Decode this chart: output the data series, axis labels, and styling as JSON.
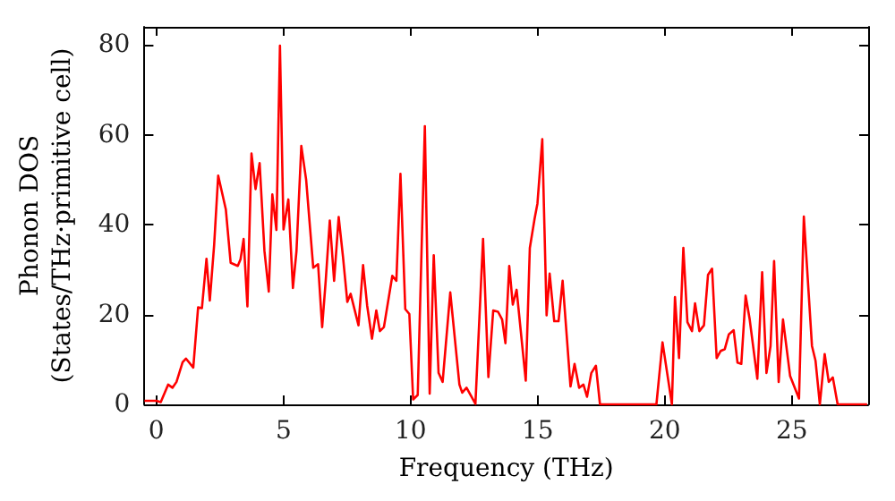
{
  "chart_data": {
    "type": "line",
    "xlabel": "Frequency (THz)",
    "ylabel": "Phonon DOS\n(States/THz·primitive cell)",
    "xlim": [
      -0.47,
      28
    ],
    "xticks": [
      0,
      5,
      10,
      15,
      20,
      25
    ],
    "ylim": [
      0,
      84
    ],
    "yticks": [
      0,
      20,
      40,
      60,
      80
    ],
    "grid": false,
    "marker": "none",
    "line_style": "solid",
    "series": [
      {
        "color": "#ff0000",
        "x": [
          -0.47,
          0,
          0.17,
          0.46,
          0.63,
          0.79,
          1.03,
          1.16,
          1.45,
          1.64,
          1.79,
          1.97,
          2.1,
          2.27,
          2.43,
          2.73,
          2.92,
          3.2,
          3.31,
          3.43,
          3.58,
          3.74,
          3.9,
          4.06,
          4.25,
          4.42,
          4.56,
          4.72,
          4.86,
          5.0,
          5.19,
          5.37,
          5.51,
          5.7,
          5.89,
          6.17,
          6.36,
          6.52,
          6.66,
          6.82,
          6.99,
          7.17,
          7.34,
          7.51,
          7.64,
          7.95,
          8.13,
          8.29,
          8.48,
          8.65,
          8.79,
          8.95,
          9.28,
          9.44,
          9.6,
          9.79,
          9.95,
          10.1,
          10.28,
          10.56,
          10.75,
          10.91,
          11.1,
          11.26,
          11.56,
          11.92,
          12.03,
          12.2,
          12.55,
          12.85,
          13.06,
          13.25,
          13.44,
          13.6,
          13.73,
          13.88,
          14.02,
          14.17,
          14.53,
          14.69,
          14.88,
          14.99,
          15.18,
          15.35,
          15.47,
          15.65,
          15.82,
          15.98,
          16.29,
          16.45,
          16.63,
          16.8,
          16.94,
          17.11,
          17.29,
          17.45,
          19.67,
          19.91,
          20.28,
          20.4,
          20.56,
          20.73,
          20.89,
          21.07,
          21.19,
          21.36,
          21.54,
          21.7,
          21.86,
          22.04,
          22.2,
          22.36,
          22.52,
          22.71,
          22.86,
          23.01,
          23.18,
          23.34,
          23.64,
          23.83,
          24.0,
          24.16,
          24.3,
          24.48,
          24.65,
          24.93,
          25.28,
          25.47,
          25.79,
          25.93,
          26.1,
          26.29,
          26.45,
          26.61,
          26.8,
          27.96
        ],
        "values": [
          0.8,
          0.8,
          0.5,
          4.4,
          3.7,
          5,
          9.4,
          10.2,
          8.2,
          21.6,
          21.4,
          32.4,
          23.1,
          35.4,
          50.9,
          43.4,
          31.5,
          30.8,
          32.3,
          36.8,
          21.8,
          55.8,
          47.9,
          53.7,
          34.1,
          25.1,
          46.7,
          38.8,
          79.8,
          38.9,
          45.6,
          25.9,
          34.1,
          57.5,
          50,
          30.4,
          31.2,
          17.2,
          27.5,
          40.9,
          27.5,
          41.7,
          32.8,
          22.8,
          24.6,
          17.6,
          31,
          22,
          14.6,
          20.9,
          16.3,
          17.2,
          28.6,
          27.5,
          51.3,
          21.2,
          20.1,
          1.1,
          2.1,
          61.9,
          2.4,
          33.2,
          7,
          5,
          24.9,
          4.4,
          2.6,
          3.7,
          0.1,
          36.8,
          6.1,
          20.9,
          20.6,
          18.9,
          13.6,
          30.8,
          22.2,
          25.5,
          5.3,
          34.8,
          41.4,
          44.7,
          59,
          19.8,
          29.1,
          18.5,
          18.5,
          27.5,
          4,
          9,
          3.7,
          4.4,
          1.7,
          7,
          8.6,
          0,
          0,
          13.8,
          0,
          23.9,
          10.3,
          34.8,
          18.3,
          16.3,
          22.5,
          16.3,
          17.6,
          28.8,
          30.2,
          10.3,
          11.9,
          12.3,
          15.6,
          16.5,
          9.3,
          9,
          24.2,
          18.9,
          5.7,
          29.4,
          7,
          13,
          31.9,
          5,
          18.9,
          6.3,
          1.3,
          41.8,
          13,
          9.7,
          0,
          11.2,
          5,
          6,
          0,
          0
        ]
      }
    ]
  }
}
